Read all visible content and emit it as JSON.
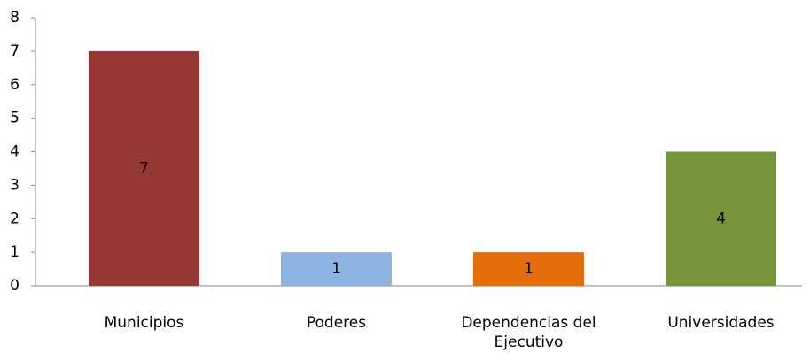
{
  "chart_data": {
    "type": "bar",
    "categories": [
      "Municipios",
      "Poderes",
      "Dependencias del Ejecutivo",
      "Universidades"
    ],
    "values": [
      7,
      1,
      1,
      4
    ],
    "colors": [
      "#953735",
      "#8db3e2",
      "#e46c0a",
      "#77933c"
    ],
    "ylim": [
      0,
      8
    ],
    "yticks": [
      0,
      1,
      2,
      3,
      4,
      5,
      6,
      7,
      8
    ],
    "grid": false,
    "data_labels": true
  }
}
